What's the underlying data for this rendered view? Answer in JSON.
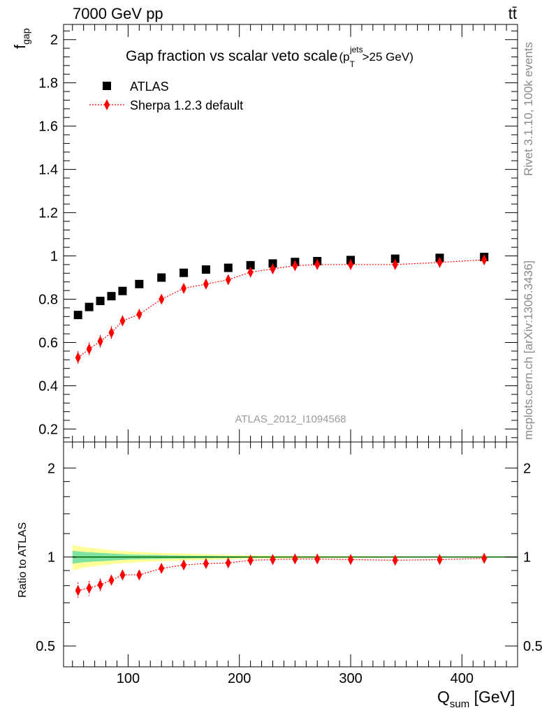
{
  "header": {
    "left": "7000 GeV pp",
    "right": "tt̄"
  },
  "side_notes": {
    "rivet": "Rivet 3.1.10,  100k events",
    "source": "mcplots.cern.ch [arXiv:1306.3436]"
  },
  "watermark": "ATLAS_2012_I1094568",
  "colors": {
    "data": "#000000",
    "mc": "#ff0000",
    "band_inner": "#7ee3a0",
    "band_outer": "#ffff99",
    "ref_line": "#006400"
  },
  "chart_data": [
    {
      "type": "scatter",
      "title_main": "Gap fraction vs scalar veto scale",
      "title_sup": "jets",
      "title_sub": "T",
      "title_tail": ">25 GeV)",
      "title_open": "(p",
      "ylabel_main": "f",
      "ylabel_sub": "gap",
      "xlim": [
        42,
        450
      ],
      "ylim": [
        0.14,
        2.07
      ],
      "yticks": [
        0.2,
        0.4,
        0.6,
        0.8,
        1,
        1.2,
        1.4,
        1.6,
        1.8,
        2
      ],
      "ytick_labels": [
        "0.2",
        "0.4",
        "0.6",
        "0.8",
        "1",
        "1.2",
        "1.4",
        "1.6",
        "1.8",
        "2"
      ],
      "legend": {
        "position": "top-left",
        "entries": [
          "ATLAS",
          "Sherpa 1.2.3 default"
        ]
      },
      "series": [
        {
          "name": "ATLAS",
          "marker": "square",
          "x": [
            55,
            65,
            75,
            85,
            95,
            110,
            130,
            150,
            170,
            190,
            210,
            230,
            250,
            270,
            300,
            340,
            380,
            420
          ],
          "y": [
            0.727,
            0.764,
            0.792,
            0.814,
            0.838,
            0.87,
            0.9,
            0.922,
            0.937,
            0.945,
            0.957,
            0.965,
            0.972,
            0.976,
            0.981,
            0.987,
            0.991,
            0.995
          ]
        },
        {
          "name": "Sherpa 1.2.3 default",
          "marker": "diamond",
          "x": [
            55,
            65,
            75,
            85,
            95,
            110,
            130,
            150,
            170,
            190,
            210,
            230,
            250,
            270,
            300,
            340,
            380,
            420
          ],
          "y": [
            0.53,
            0.57,
            0.605,
            0.645,
            0.7,
            0.73,
            0.8,
            0.85,
            0.87,
            0.89,
            0.925,
            0.94,
            0.955,
            0.96,
            0.96,
            0.96,
            0.97,
            0.982
          ],
          "err": [
            0.03,
            0.03,
            0.03,
            0.03,
            0.025,
            0.025,
            0.02,
            0.02,
            0.02,
            0.02,
            0.015,
            0.015,
            0.01,
            0.01,
            0.01,
            0.01,
            0.01,
            0.01
          ]
        }
      ]
    },
    {
      "type": "scatter",
      "ylabel": "Ratio to ATLAS",
      "xlabel_main": "Q",
      "xlabel_sub": "sum",
      "xlabel_tail": " [GeV]",
      "xlim": [
        42,
        450
      ],
      "ylim": [
        0.425,
        2.45
      ],
      "yscale": "log",
      "yticks": [
        0.5,
        1,
        2
      ],
      "ytick_labels": [
        "0.5",
        "1",
        "2"
      ],
      "xticks": [
        100,
        200,
        300,
        400
      ],
      "xtick_labels": [
        "100",
        "200",
        "300",
        "400"
      ],
      "band": {
        "x": [
          50,
          60,
          70,
          80,
          90,
          100,
          120,
          140,
          160,
          180,
          200,
          220,
          240,
          260,
          280,
          320,
          360,
          400,
          440
        ],
        "outer": [
          0.1,
          0.08,
          0.07,
          0.06,
          0.05,
          0.045,
          0.035,
          0.03,
          0.025,
          0.02,
          0.015,
          0.012,
          0.01,
          0.008,
          0.007,
          0.006,
          0.005,
          0.005,
          0.005
        ],
        "inner": [
          0.05,
          0.04,
          0.035,
          0.03,
          0.025,
          0.02,
          0.016,
          0.013,
          0.01,
          0.008,
          0.006,
          0.005,
          0.004,
          0.004,
          0.003,
          0.003,
          0.003,
          0.003,
          0.003
        ]
      },
      "series": [
        {
          "name": "Sherpa 1.2.3 default",
          "x": [
            55,
            65,
            75,
            85,
            95,
            110,
            130,
            150,
            170,
            190,
            210,
            230,
            250,
            270,
            300,
            340,
            380,
            420
          ],
          "y": [
            0.77,
            0.785,
            0.805,
            0.835,
            0.87,
            0.87,
            0.915,
            0.94,
            0.95,
            0.955,
            0.975,
            0.98,
            0.985,
            0.985,
            0.98,
            0.975,
            0.98,
            0.99
          ],
          "err": [
            0.05,
            0.045,
            0.04,
            0.035,
            0.03,
            0.03,
            0.025,
            0.02,
            0.015,
            0.012,
            0.01,
            0.01,
            0.01,
            0.01,
            0.01,
            0.01,
            0.01,
            0.01
          ]
        }
      ]
    }
  ]
}
